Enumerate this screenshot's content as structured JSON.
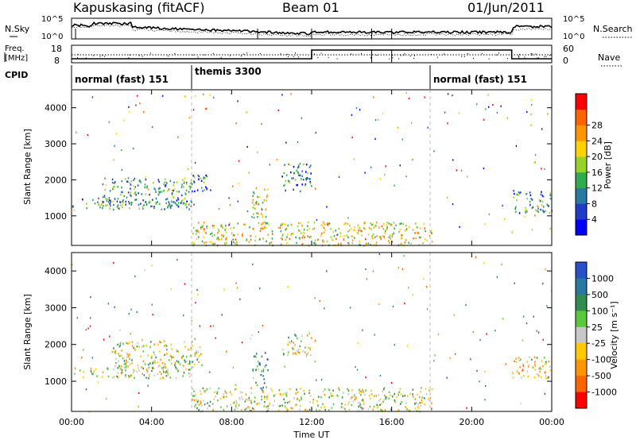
{
  "header": {
    "radar": "Kapuskasing (fitACF)",
    "beam": "Beam 01",
    "date": "01/Jun/2011"
  },
  "noise_panel": {
    "left_label": "N.Sky",
    "right_label": "N.Search",
    "left_ticks": [
      "10^5",
      "10^0"
    ],
    "right_ticks": [
      "10^5",
      "10^0"
    ]
  },
  "freq_panel": {
    "left_label_top": "Freq.",
    "left_label_bottom": "[MHz]",
    "right_label": "Nave",
    "left_ticks": [
      "18",
      "8"
    ],
    "right_ticks": [
      "60",
      "0"
    ]
  },
  "cpid": {
    "label": "CPID",
    "segments": [
      {
        "name": "normal (fast) 151",
        "start_hour": 0
      },
      {
        "name": "themis 3300",
        "start_hour": 6
      },
      {
        "name": "normal (fast) 151",
        "start_hour": 18
      }
    ]
  },
  "x_axis": {
    "label": "Time UT",
    "ticks": [
      "00:00",
      "04:00",
      "08:00",
      "12:00",
      "16:00",
      "20:00",
      "00:00"
    ]
  },
  "chart_data": [
    {
      "type": "heatmap",
      "name": "power",
      "ylabel": "Slant Range [km]",
      "y_ticks": [
        "1000",
        "2000",
        "3000",
        "4000"
      ],
      "xlim_hours": [
        0,
        24
      ],
      "ylim_km": [
        180,
        4500
      ],
      "colorbar_label": "Power [dB]",
      "colorbar_ticks": [
        "4",
        "8",
        "12",
        "16",
        "20",
        "24",
        "28"
      ],
      "colorbar_colors": [
        "#0000ff",
        "#1e3cc8",
        "#2878a0",
        "#32aa50",
        "#96d228",
        "#ffd200",
        "#ff9600",
        "#ff6400",
        "#ff0000"
      ],
      "echo_regions": [
        {
          "t0": 0.0,
          "t1": 6.0,
          "r0": 1200,
          "r1": 1500,
          "level": 0.3
        },
        {
          "t0": 1.5,
          "t1": 6.0,
          "r0": 1300,
          "r1": 2100,
          "level": 0.35
        },
        {
          "t0": 6.0,
          "t1": 7.0,
          "r0": 1700,
          "r1": 2200,
          "level": 0.3
        },
        {
          "t0": 9.0,
          "t1": 9.8,
          "r0": 800,
          "r1": 1800,
          "level": 0.55
        },
        {
          "t0": 10.5,
          "t1": 12.0,
          "r0": 1700,
          "r1": 2500,
          "level": 0.3
        },
        {
          "t0": 6.0,
          "t1": 18.0,
          "r0": 200,
          "r1": 850,
          "level": 0.6
        },
        {
          "t0": 22.0,
          "t1": 24.0,
          "r0": 1100,
          "r1": 1700,
          "level": 0.3
        }
      ]
    },
    {
      "type": "heatmap",
      "name": "velocity",
      "ylabel": "Slant Range [km]",
      "y_ticks": [
        "1000",
        "2000",
        "3000",
        "4000"
      ],
      "xlim_hours": [
        0,
        24
      ],
      "ylim_km": [
        180,
        4500
      ],
      "colorbar_label": "Velocity [m s⁻¹]",
      "colorbar_ticks": [
        "1000",
        "500",
        "100",
        "25",
        "-25",
        "-100",
        "-500",
        "-1000"
      ],
      "colorbar_colors": [
        "#2850c8",
        "#2878a0",
        "#328c50",
        "#5ac83c",
        "#c8c8c8",
        "#ffc800",
        "#ff9600",
        "#ff6400",
        "#ff0000"
      ],
      "echo_regions": [
        {
          "t0": 0.0,
          "t1": 6.0,
          "r0": 1100,
          "r1": 1400,
          "level": 0.5
        },
        {
          "t0": 2.0,
          "t1": 6.5,
          "r0": 1300,
          "r1": 2100,
          "level": 0.5
        },
        {
          "t0": 9.0,
          "t1": 9.8,
          "r0": 800,
          "r1": 1800,
          "level": 0.25
        },
        {
          "t0": 10.5,
          "t1": 12.0,
          "r0": 1700,
          "r1": 2300,
          "level": 0.5
        },
        {
          "t0": 6.0,
          "t1": 18.0,
          "r0": 200,
          "r1": 850,
          "level": 0.5
        },
        {
          "t0": 22.0,
          "t1": 24.0,
          "r0": 1100,
          "r1": 1700,
          "level": 0.55
        }
      ]
    }
  ]
}
